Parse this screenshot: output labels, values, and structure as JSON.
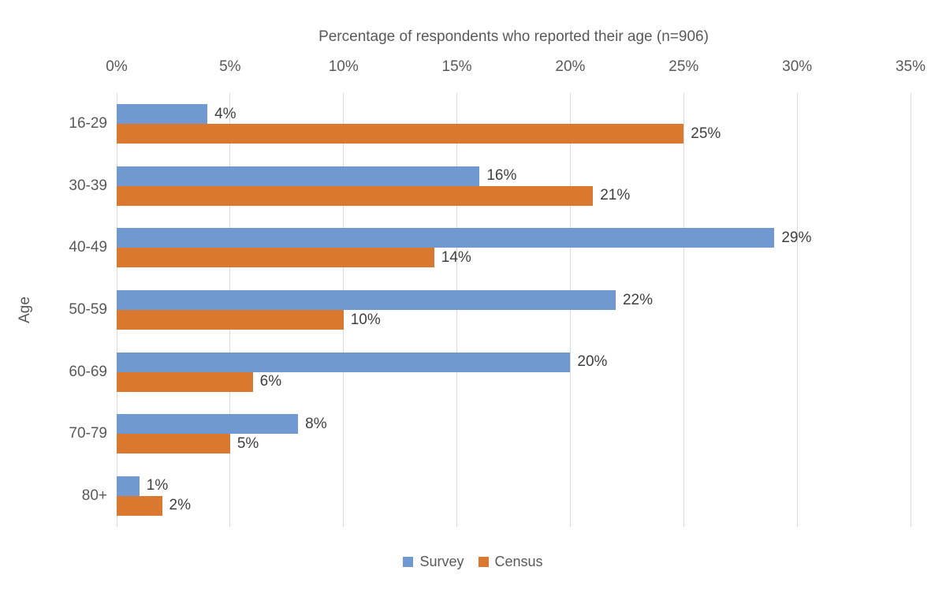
{
  "chart_data": {
    "type": "bar",
    "orientation": "horizontal",
    "title": "Percentage of respondents who reported their age (n=906)",
    "category_axis_label": "Age",
    "categories": [
      "16-29",
      "30-39",
      "40-49",
      "50-59",
      "60-69",
      "70-79",
      "80+"
    ],
    "series": [
      {
        "name": "Survey",
        "color": "#6F99D0",
        "values": [
          4,
          16,
          29,
          22,
          20,
          8,
          1
        ],
        "labels": [
          "4%",
          "16%",
          "29%",
          "22%",
          "20%",
          "8%",
          "1%"
        ]
      },
      {
        "name": "Census",
        "color": "#D9782E",
        "values": [
          25,
          21,
          14,
          10,
          6,
          5,
          2
        ],
        "labels": [
          "25%",
          "21%",
          "14%",
          "10%",
          "6%",
          "5%",
          "2%"
        ]
      }
    ],
    "value_axis": {
      "position": "top",
      "min": 0,
      "max": 35,
      "step": 5,
      "tick_labels": [
        "0%",
        "5%",
        "10%",
        "15%",
        "20%",
        "25%",
        "30%",
        "35%"
      ]
    },
    "legend": {
      "position": "bottom",
      "entries": [
        "Survey",
        "Census"
      ]
    },
    "grid": true,
    "gridline_color": "#D9D9D9",
    "axis_text_color": "#595959",
    "data_label_color": "#3F3F3F",
    "background": "#FFFFFF"
  }
}
